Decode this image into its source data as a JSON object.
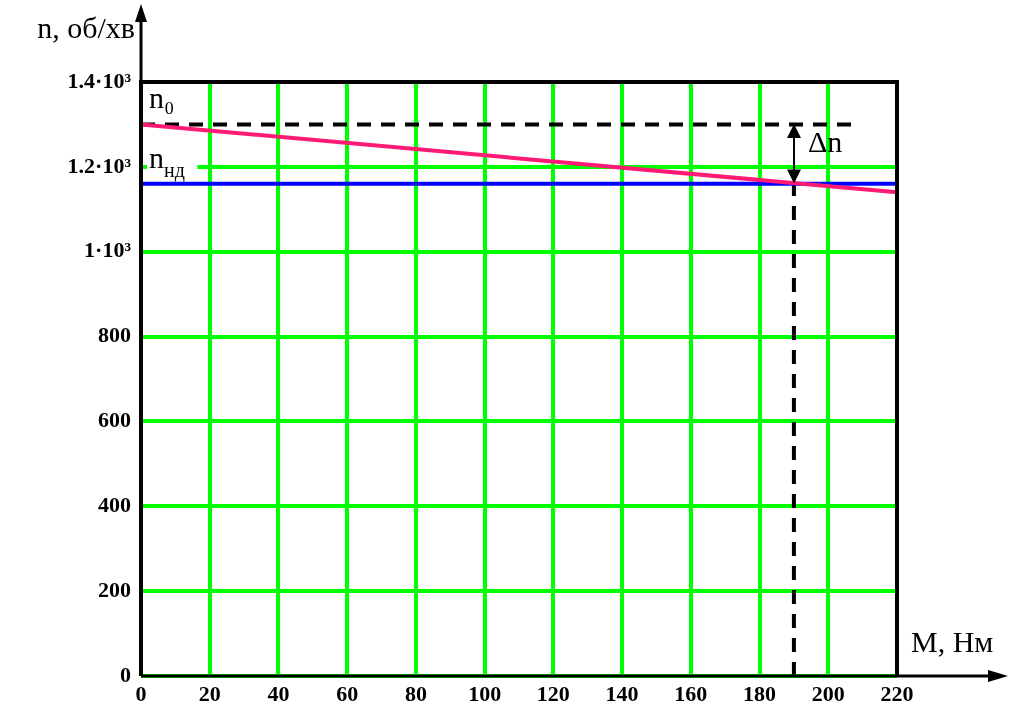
{
  "chart_data": {
    "type": "line",
    "xlabel": "M, Нм",
    "ylabel": "n, об/хв",
    "xlim": [
      0,
      220
    ],
    "xticks": [
      0,
      20,
      40,
      60,
      80,
      100,
      120,
      140,
      160,
      180,
      200,
      220
    ],
    "ylim": [
      0,
      1400
    ],
    "yticks": [
      0,
      200,
      400,
      600,
      800,
      {
        "value": 1000,
        "label": "1·10³"
      },
      {
        "value": 1200,
        "label": "1.2·10³"
      },
      {
        "value": 1400,
        "label": "1.4·10³"
      }
    ],
    "grid": true,
    "legend": false,
    "marker": "none",
    "series": [
      {
        "color": "#ff1a75",
        "x": [
          0,
          220
        ],
        "values": [
          1300,
          1140
        ]
      },
      {
        "name": "n₀",
        "color": "#000000",
        "x": [
          0,
          208
        ],
        "values": [
          1300,
          1300
        ],
        "line_style": "dashed"
      },
      {
        "name": "n$_{нд}$",
        "color": "#0000ff",
        "x": [
          0,
          220
        ],
        "values": [
          1160,
          1160
        ]
      },
      {
        "color": "#000000",
        "x": [
          190,
          190
        ],
        "values": [
          0,
          1160
        ],
        "line_style": "dashed"
      }
    ],
    "annotations": [
      "Δn"
    ]
  }
}
